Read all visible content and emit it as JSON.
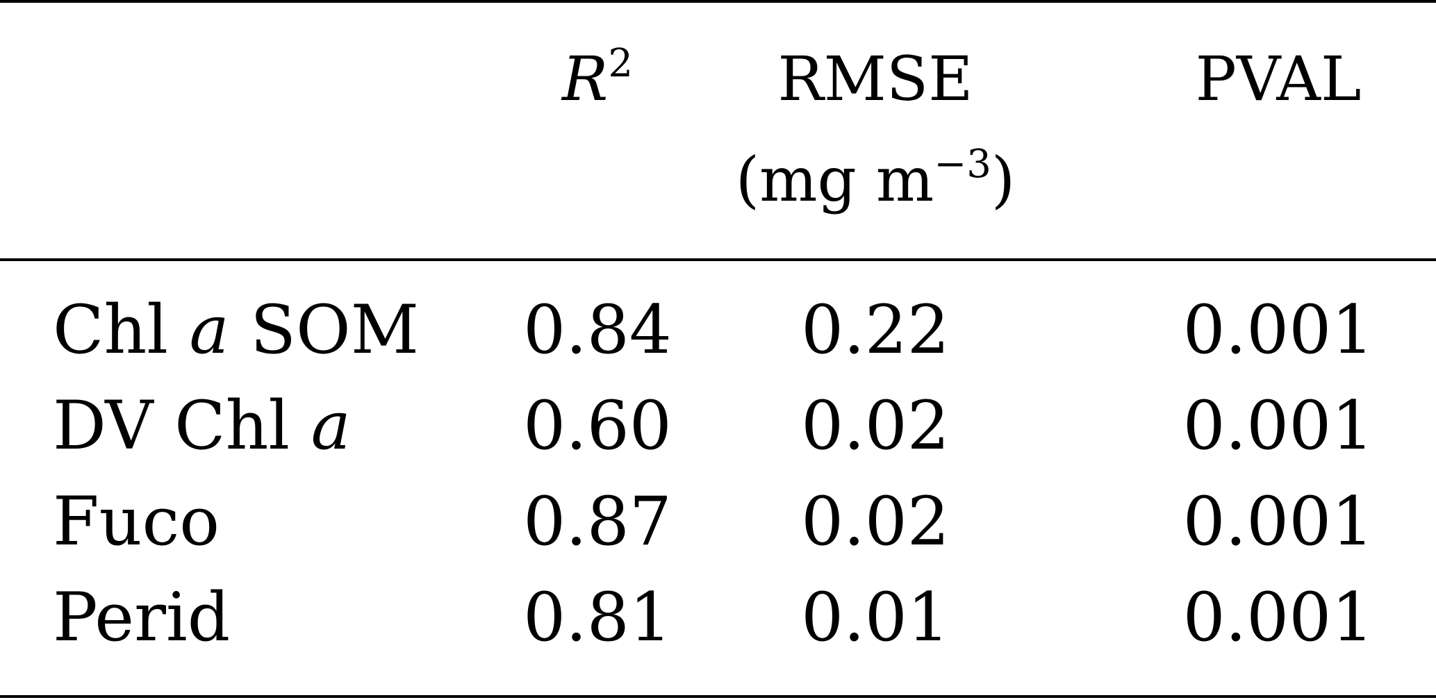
{
  "table": {
    "header": {
      "r2_letter": "R",
      "r2_exponent": "2",
      "rmse": "RMSE",
      "rmse_unit": "(mg m",
      "rmse_unit_exponent": "−3",
      "rmse_unit_close": ")",
      "pval": "PVAL"
    },
    "rows": [
      {
        "label_pre": "Chl ",
        "label_italic": "a",
        "label_post": " SOM",
        "r2": "0.84",
        "rmse": "0.22",
        "pval": "0.001"
      },
      {
        "label_pre": "DV Chl ",
        "label_italic": "a",
        "label_post": "",
        "r2": "0.60",
        "rmse": "0.02",
        "pval": "0.001"
      },
      {
        "label_pre": "Fuco",
        "label_italic": "",
        "label_post": "",
        "r2": "0.87",
        "rmse": "0.02",
        "pval": "0.001"
      },
      {
        "label_pre": "Perid",
        "label_italic": "",
        "label_post": "",
        "r2": "0.81",
        "rmse": "0.01",
        "pval": "0.001"
      }
    ]
  }
}
